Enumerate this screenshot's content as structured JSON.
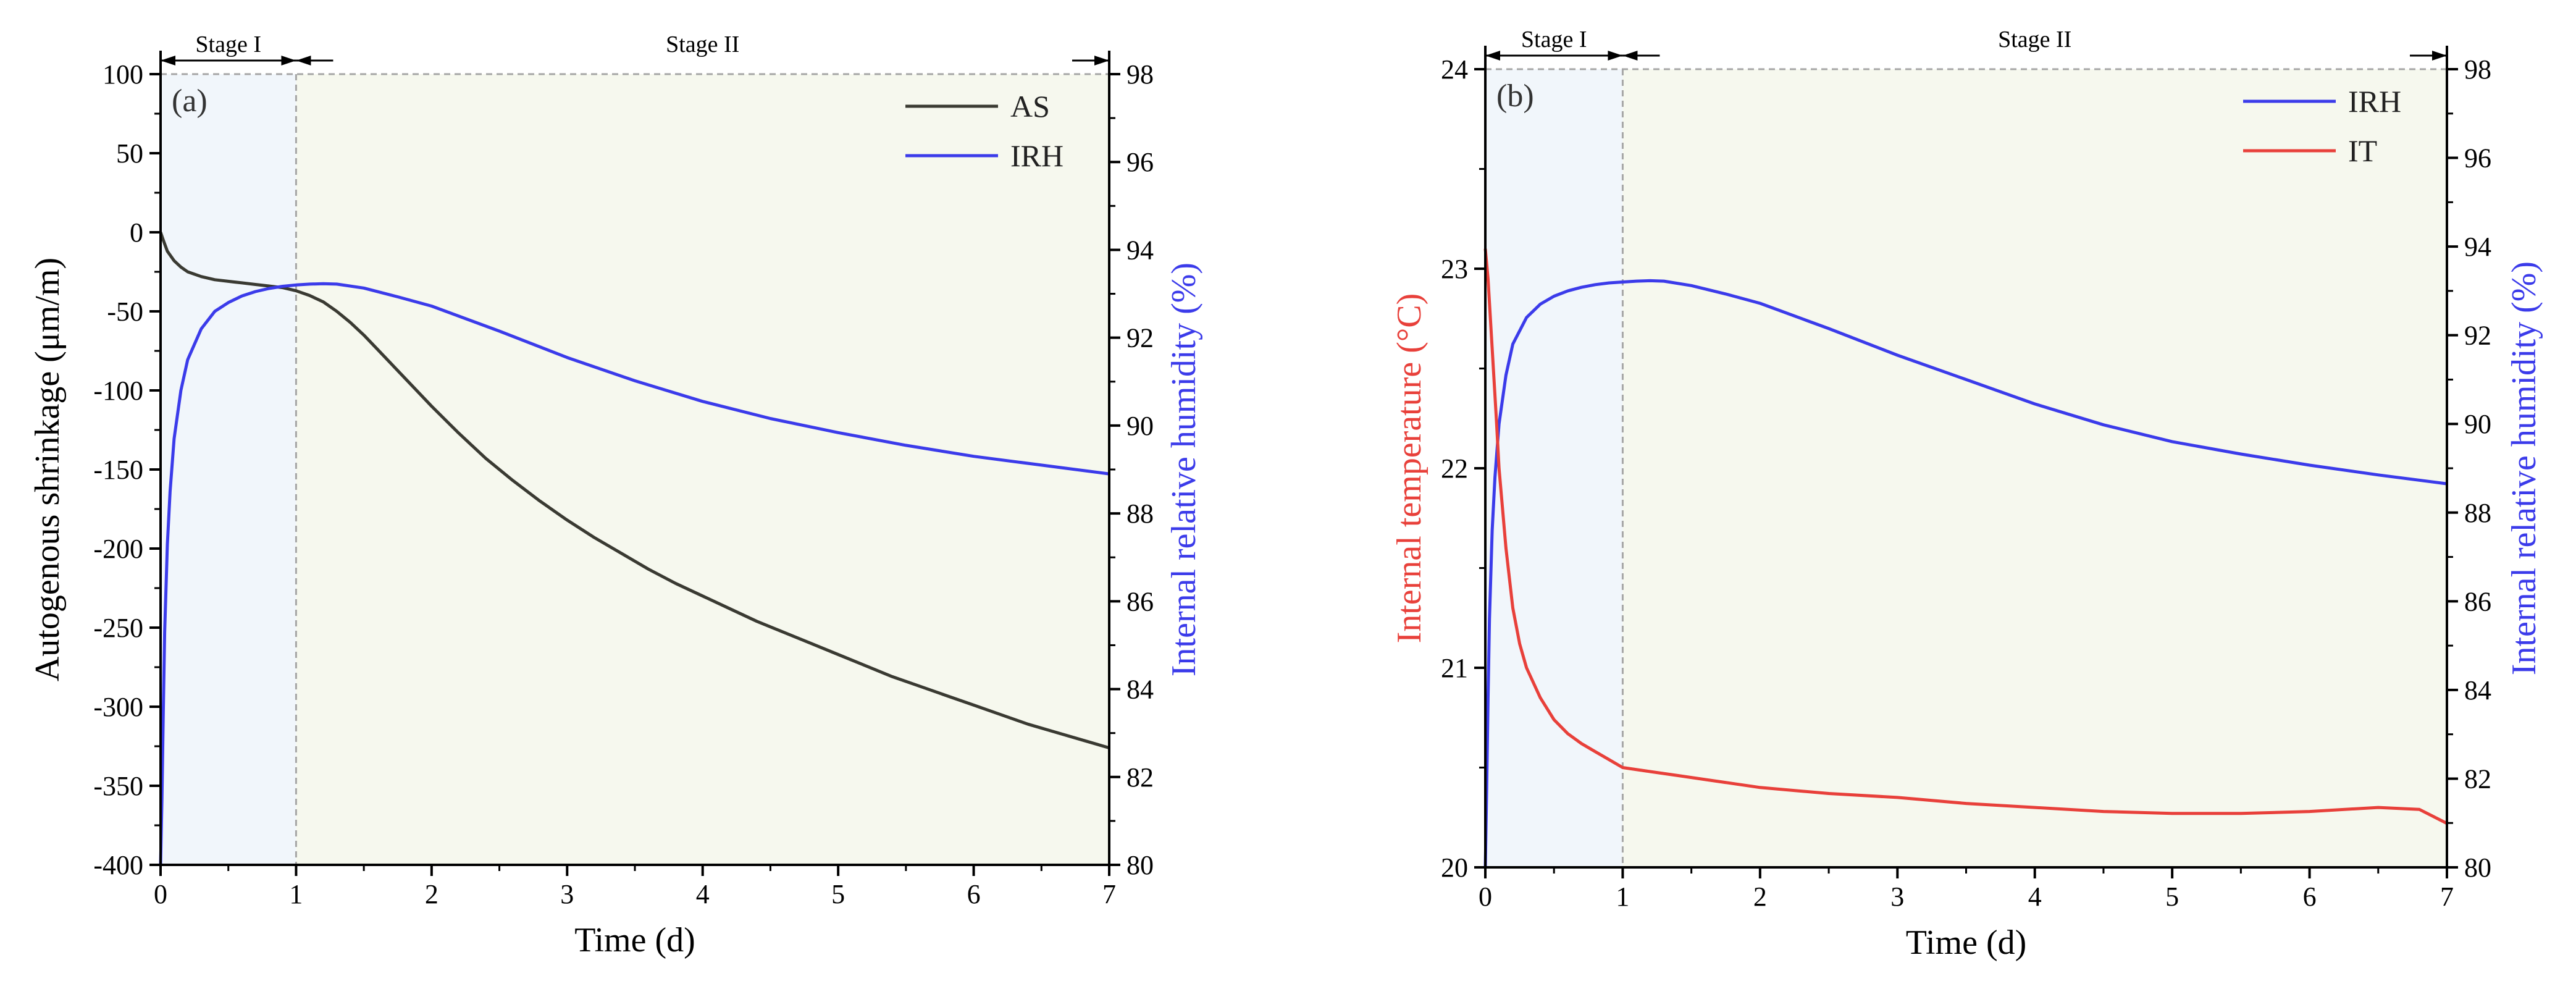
{
  "colors": {
    "axis": "#000000",
    "as_line": "#3a3a32",
    "irh_line": "#3b3bea",
    "it_line": "#e8403a",
    "irh_label": "#3b3bea",
    "it_label": "#e8403a",
    "stage1_fill": "#f1f6fb",
    "stage2_fill": "#f6f8ee",
    "guide": "#a6a6a6"
  },
  "chart_data": [
    {
      "type": "line",
      "panel_label": "(a)",
      "xlabel": "Time (d)",
      "ylabel_left": "Autogenous shrinkage (μm/m)",
      "ylabel_right": "Internal relative humidity (%)",
      "xlim": [
        0,
        7
      ],
      "ylim_left": [
        -400,
        100
      ],
      "ylim_right": [
        80,
        98
      ],
      "x_ticks": [
        "0",
        "1",
        "2",
        "3",
        "4",
        "5",
        "6",
        "7"
      ],
      "y_left_ticks": [
        "100",
        "50",
        "0",
        "-50",
        "-100",
        "-150",
        "-200",
        "-250",
        "-300",
        "-350",
        "-400"
      ],
      "y_right_ticks": [
        "98",
        "96",
        "94",
        "92",
        "90",
        "88",
        "86",
        "84",
        "82",
        "80"
      ],
      "stages": [
        {
          "label": "Stage I",
          "from": 0,
          "to": 1
        },
        {
          "label": "Stage II",
          "from": 1,
          "to": 7
        }
      ],
      "series": [
        {
          "name": "AS",
          "axis": "left",
          "x": [
            0,
            0.02,
            0.05,
            0.1,
            0.15,
            0.2,
            0.3,
            0.4,
            0.5,
            0.6,
            0.7,
            0.8,
            0.9,
            1.0,
            1.1,
            1.2,
            1.3,
            1.4,
            1.5,
            1.6,
            1.8,
            2.0,
            2.2,
            2.4,
            2.6,
            2.8,
            3.0,
            3.2,
            3.4,
            3.6,
            3.8,
            4.0,
            4.2,
            4.4,
            4.6,
            4.8,
            5.0,
            5.2,
            5.4,
            5.6,
            5.8,
            6.0,
            6.2,
            6.4,
            6.6,
            6.8,
            7.0
          ],
          "values": [
            0,
            -5,
            -12,
            -18,
            -22,
            -25,
            -28,
            -30,
            -31,
            -32,
            -33,
            -34,
            -35,
            -37,
            -40,
            -44,
            -50,
            -57,
            -65,
            -74,
            -92,
            -110,
            -127,
            -143,
            -157,
            -170,
            -182,
            -193,
            -203,
            -213,
            -222,
            -230,
            -238,
            -246,
            -253,
            -260,
            -267,
            -274,
            -281,
            -287,
            -293,
            -299,
            -305,
            -311,
            -316,
            -321,
            -326
          ]
        },
        {
          "name": "IRH",
          "axis": "right",
          "x": [
            0,
            0.01,
            0.02,
            0.03,
            0.05,
            0.07,
            0.1,
            0.15,
            0.2,
            0.3,
            0.4,
            0.5,
            0.6,
            0.7,
            0.8,
            0.9,
            1.0,
            1.1,
            1.2,
            1.3,
            1.5,
            1.75,
            2.0,
            2.5,
            3.0,
            3.5,
            4.0,
            4.5,
            5.0,
            5.5,
            6.0,
            6.5,
            7.0
          ],
          "values": [
            80,
            81.5,
            83.5,
            85.3,
            87.3,
            88.5,
            89.7,
            90.8,
            91.5,
            92.2,
            92.6,
            92.8,
            92.95,
            93.05,
            93.12,
            93.17,
            93.2,
            93.22,
            93.23,
            93.22,
            93.13,
            92.93,
            92.72,
            92.15,
            91.55,
            91.02,
            90.55,
            90.16,
            89.84,
            89.55,
            89.3,
            89.1,
            88.9
          ]
        }
      ]
    },
    {
      "type": "line",
      "panel_label": "(b)",
      "xlabel": "Time (d)",
      "ylabel_left": "Internal temperature (°C)",
      "ylabel_right": "Internal relative humidity (%)",
      "xlim": [
        0,
        7
      ],
      "ylim_left": [
        20,
        24
      ],
      "ylim_right": [
        80,
        98
      ],
      "x_ticks": [
        "0",
        "1",
        "2",
        "3",
        "4",
        "5",
        "6",
        "7"
      ],
      "y_left_ticks": [
        "24",
        "23",
        "22",
        "21",
        "20"
      ],
      "y_right_ticks": [
        "98",
        "96",
        "94",
        "92",
        "90",
        "88",
        "86",
        "84",
        "82",
        "80"
      ],
      "stages": [
        {
          "label": "Stage I",
          "from": 0,
          "to": 1
        },
        {
          "label": "Stage II",
          "from": 1,
          "to": 7
        }
      ],
      "series": [
        {
          "name": "IRH",
          "axis": "right",
          "x": [
            0,
            0.01,
            0.02,
            0.03,
            0.05,
            0.07,
            0.1,
            0.15,
            0.2,
            0.3,
            0.4,
            0.5,
            0.6,
            0.7,
            0.8,
            0.9,
            1.0,
            1.1,
            1.2,
            1.3,
            1.5,
            1.75,
            2.0,
            2.5,
            3.0,
            3.5,
            4.0,
            4.5,
            5.0,
            5.5,
            6.0,
            6.5,
            7.0
          ],
          "values": [
            80,
            81.8,
            83.8,
            85.6,
            87.6,
            88.8,
            90.0,
            91.1,
            91.8,
            92.4,
            92.7,
            92.88,
            93.0,
            93.08,
            93.14,
            93.18,
            93.2,
            93.22,
            93.23,
            93.22,
            93.12,
            92.93,
            92.72,
            92.15,
            91.55,
            91.0,
            90.45,
            89.98,
            89.6,
            89.32,
            89.07,
            88.85,
            88.65
          ]
        },
        {
          "name": "IT",
          "axis": "left",
          "x": [
            0,
            0.02,
            0.05,
            0.08,
            0.1,
            0.15,
            0.2,
            0.25,
            0.3,
            0.4,
            0.5,
            0.6,
            0.7,
            0.8,
            0.9,
            1.0,
            1.2,
            1.4,
            1.6,
            1.8,
            2.0,
            2.5,
            3.0,
            3.5,
            4.0,
            4.5,
            5.0,
            5.5,
            6.0,
            6.5,
            6.8,
            7.0
          ],
          "values": [
            23.1,
            22.95,
            22.6,
            22.25,
            22.0,
            21.6,
            21.3,
            21.12,
            21.0,
            20.85,
            20.74,
            20.67,
            20.62,
            20.58,
            20.54,
            20.5,
            20.48,
            20.46,
            20.44,
            20.42,
            20.4,
            20.37,
            20.35,
            20.32,
            20.3,
            20.28,
            20.27,
            20.27,
            20.28,
            20.3,
            20.29,
            20.22
          ]
        }
      ]
    }
  ]
}
